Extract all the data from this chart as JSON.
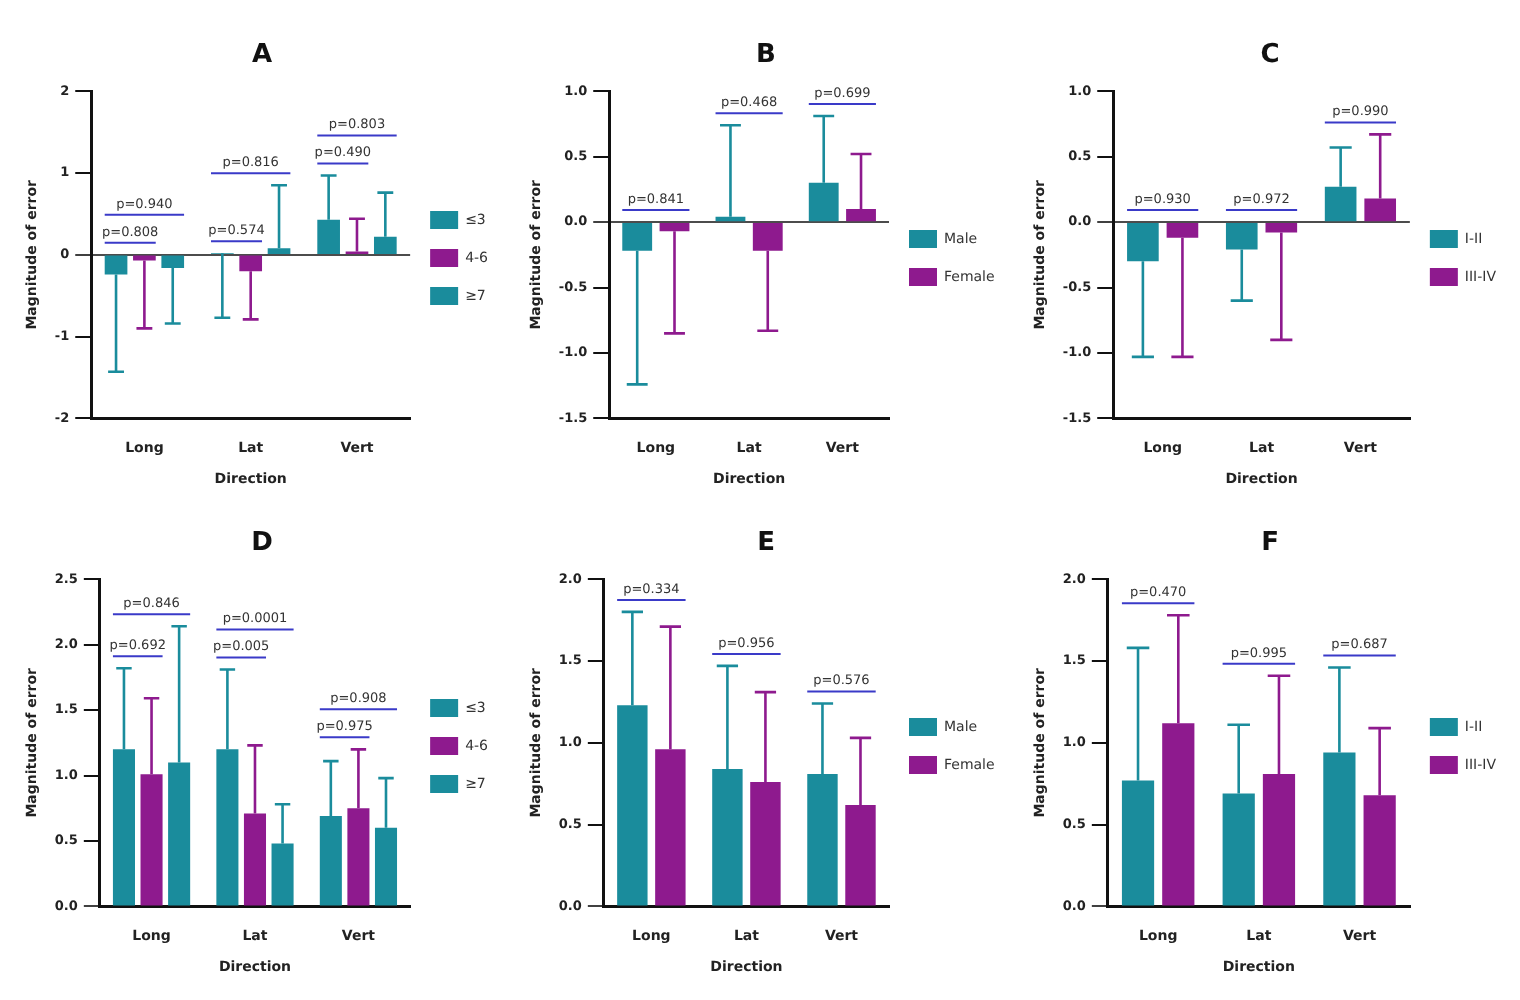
{
  "chart_data": [
    {
      "type": "bar",
      "title": "A",
      "xlabel": "Direction",
      "ylabel": "Magnitude of error",
      "categories": [
        "Long",
        "Lat",
        "Vert"
      ],
      "legend": "right",
      "ylim": [
        -2,
        2
      ],
      "yticks": [
        -2,
        -1,
        0,
        1,
        2
      ],
      "series": [
        {
          "name": "≤3",
          "color": "#1a8c9c",
          "values": [
            -0.24,
            0.02,
            0.43
          ],
          "errors": [
            [
              -1.43,
              -0.24
            ],
            [
              -0.77,
              0.02
            ],
            [
              0.43,
              0.97
            ]
          ]
        },
        {
          "name": "4-6",
          "color": "#8e1a8e",
          "values": [
            -0.07,
            -0.2,
            0.04
          ],
          "errors": [
            [
              -0.9,
              -0.07
            ],
            [
              -0.79,
              -0.2
            ],
            [
              0.04,
              0.44
            ]
          ]
        },
        {
          "name": "≥7",
          "color": "#1a8c9c",
          "values": [
            -0.16,
            0.08,
            0.22
          ],
          "errors": [
            [
              -0.84,
              -0.16
            ],
            [
              0.08,
              0.85
            ],
            [
              0.22,
              0.76
            ]
          ]
        }
      ],
      "annotations": [
        "p=0.940",
        "p=0.808",
        "p=0.816",
        "p=0.574",
        "p=0.803",
        "p=0.490"
      ]
    },
    {
      "type": "bar",
      "title": "B",
      "xlabel": "Direction",
      "ylabel": "Magnitude of error",
      "categories": [
        "Long",
        "Lat",
        "Vert"
      ],
      "legend": "right",
      "ylim": [
        -1.5,
        1
      ],
      "yticks": [
        -1.5,
        {
          "value": -1,
          "label": "-1.0"
        },
        -0.5,
        {
          "value": 0,
          "label": "0.0"
        },
        0.5,
        {
          "value": 1,
          "label": "1.0"
        }
      ],
      "series": [
        {
          "name": "Male",
          "color": "#1a8c9c",
          "values": [
            -0.22,
            0.04,
            0.3
          ],
          "errors": [
            [
              -1.24,
              -0.22
            ],
            [
              0.04,
              0.74
            ],
            [
              0.3,
              0.81
            ]
          ]
        },
        {
          "name": "Female",
          "color": "#8e1a8e",
          "values": [
            -0.07,
            -0.22,
            0.1
          ],
          "errors": [
            [
              -0.85,
              -0.07
            ],
            [
              -0.83,
              -0.22
            ],
            [
              0.1,
              0.52
            ]
          ]
        }
      ],
      "annotations": [
        "p=0.841",
        "p=0.468",
        "p=0.699"
      ]
    },
    {
      "type": "bar",
      "title": "C",
      "xlabel": "Direction",
      "ylabel": "Magnitude of error",
      "categories": [
        "Long",
        "Lat",
        "Vert"
      ],
      "legend": "right",
      "ylim": [
        -1.5,
        1
      ],
      "yticks": [
        -1.5,
        {
          "value": -1,
          "label": "-1.0"
        },
        -0.5,
        {
          "value": 0,
          "label": "0.0"
        },
        0.5,
        {
          "value": 1,
          "label": "1.0"
        }
      ],
      "series": [
        {
          "name": "I-II",
          "color": "#1a8c9c",
          "values": [
            -0.3,
            -0.21,
            0.27
          ],
          "errors": [
            [
              -1.03,
              -0.3
            ],
            [
              -0.6,
              -0.21
            ],
            [
              0.27,
              0.57
            ]
          ]
        },
        {
          "name": "III-IV",
          "color": "#8e1a8e",
          "values": [
            -0.12,
            -0.08,
            0.18
          ],
          "errors": [
            [
              -1.03,
              -0.12
            ],
            [
              -0.9,
              -0.08
            ],
            [
              0.18,
              0.67
            ]
          ]
        }
      ],
      "annotations": [
        "p=0.930",
        "p=0.972",
        "p=0.990"
      ]
    },
    {
      "type": "bar",
      "title": "D",
      "xlabel": "Direction",
      "ylabel": "Magnitude of error",
      "categories": [
        "Long",
        "Lat",
        "Vert"
      ],
      "legend": "right",
      "ylim": [
        0,
        2.5
      ],
      "yticks": [
        {
          "value": 0,
          "label": "0.0"
        },
        0.5,
        {
          "value": 1,
          "label": "1.0"
        },
        1.5,
        {
          "value": 2,
          "label": "2.0"
        },
        2.5
      ],
      "series": [
        {
          "name": "≤3",
          "color": "#1a8c9c",
          "values": [
            1.2,
            1.2,
            0.69
          ],
          "errors": [
            [
              1.2,
              1.82
            ],
            [
              1.2,
              1.81
            ],
            [
              0.69,
              1.11
            ]
          ]
        },
        {
          "name": "4-6",
          "color": "#8e1a8e",
          "values": [
            1.01,
            0.71,
            0.75
          ],
          "errors": [
            [
              1.01,
              1.59
            ],
            [
              0.71,
              1.23
            ],
            [
              0.75,
              1.2
            ]
          ]
        },
        {
          "name": "≥7",
          "color": "#1a8c9c",
          "values": [
            1.1,
            0.48,
            0.6
          ],
          "errors": [
            [
              1.1,
              2.14
            ],
            [
              0.48,
              0.78
            ],
            [
              0.6,
              0.98
            ]
          ]
        }
      ],
      "annotations": [
        "p=0.846",
        "p=0.692",
        "p=0.0001",
        "p=0.005",
        "p=0.908",
        "p=0.975"
      ]
    },
    {
      "type": "bar",
      "title": "E",
      "xlabel": "Direction",
      "ylabel": "Magnitude of error",
      "categories": [
        "Long",
        "Lat",
        "Vert"
      ],
      "legend": "right",
      "ylim": [
        0,
        2
      ],
      "yticks": [
        {
          "value": 0,
          "label": "0.0"
        },
        0.5,
        {
          "value": 1,
          "label": "1.0"
        },
        1.5,
        {
          "value": 2,
          "label": "2.0"
        }
      ],
      "series": [
        {
          "name": "Male",
          "color": "#1a8c9c",
          "values": [
            1.23,
            0.84,
            0.81
          ],
          "errors": [
            [
              1.23,
              1.8
            ],
            [
              0.84,
              1.47
            ],
            [
              0.81,
              1.24
            ]
          ]
        },
        {
          "name": "Female",
          "color": "#8e1a8e",
          "values": [
            0.96,
            0.76,
            0.62
          ],
          "errors": [
            [
              0.96,
              1.71
            ],
            [
              0.76,
              1.31
            ],
            [
              0.62,
              1.03
            ]
          ]
        }
      ],
      "annotations": [
        "p=0.334",
        "p=0.956",
        "p=0.576"
      ]
    },
    {
      "type": "bar",
      "title": "F",
      "xlabel": "Direction",
      "ylabel": "Magnitude of error",
      "categories": [
        "Long",
        "Lat",
        "Vert"
      ],
      "legend": "right",
      "ylim": [
        0,
        2
      ],
      "yticks": [
        {
          "value": 0,
          "label": "0.0"
        },
        0.5,
        {
          "value": 1,
          "label": "1.0"
        },
        1.5,
        {
          "value": 2,
          "label": "2.0"
        }
      ],
      "series": [
        {
          "name": "I-II",
          "color": "#1a8c9c",
          "values": [
            0.77,
            0.69,
            0.94
          ],
          "errors": [
            [
              0.77,
              1.58
            ],
            [
              0.69,
              1.11
            ],
            [
              0.94,
              1.46
            ]
          ]
        },
        {
          "name": "III-IV",
          "color": "#8e1a8e",
          "values": [
            1.12,
            0.81,
            0.68
          ],
          "errors": [
            [
              1.12,
              1.78
            ],
            [
              0.81,
              1.41
            ],
            [
              0.68,
              1.09
            ]
          ]
        }
      ],
      "annotations": [
        "p=0.470",
        "p=0.995",
        "p=0.687"
      ]
    }
  ]
}
